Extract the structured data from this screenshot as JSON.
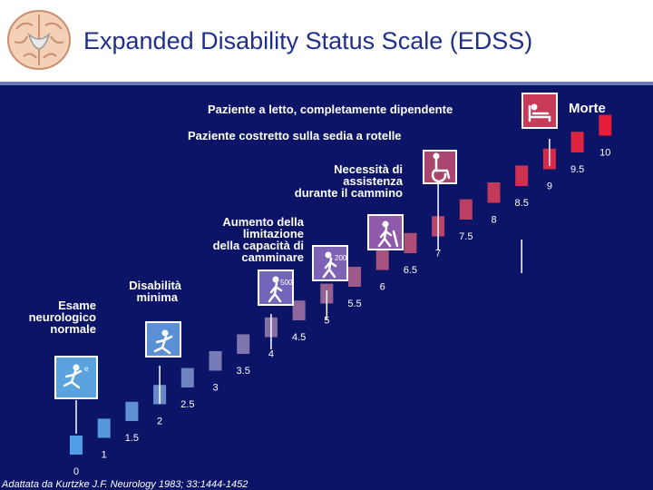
{
  "title": "Expanded Disability Status Scale (EDSS)",
  "citation": "Adattata da Kurtzke J.F. Neurology 1983; 33:1444-1452",
  "milestones": {
    "esame": [
      "Esame",
      "neurologico",
      "normale"
    ],
    "disabilita": [
      "Disabilità",
      "minima"
    ],
    "aumento": [
      "Aumento della",
      "limitazione",
      "della capacità di",
      "camminare"
    ],
    "necessita": [
      "Necessità di",
      "assistenza",
      "durante il cammino"
    ],
    "sedia": "Paziente costretto sulla sedia a rotelle",
    "letto": "Paziente a letto, completamente dipendente",
    "morte": "Morte"
  },
  "icon_labels": {
    "walk500": "500",
    "walk200": "200",
    "runner": "e"
  },
  "chart_data": {
    "type": "bar",
    "title": "Expanded Disability Status Scale (EDSS)",
    "categories": [
      "0",
      "1",
      "1.5",
      "2",
      "2.5",
      "3",
      "3.5",
      "4",
      "4.5",
      "5",
      "5.5",
      "6",
      "6.5",
      "7",
      "7.5",
      "8",
      "8.5",
      "9",
      "9.5",
      "10"
    ],
    "values": [
      0,
      1,
      1.5,
      2,
      2.5,
      3,
      3.5,
      4,
      4.5,
      5,
      5.5,
      6,
      6.5,
      7,
      7.5,
      8,
      8.5,
      9,
      9.5,
      10
    ],
    "ylim": [
      0,
      10
    ],
    "colors": {
      "start": "#4f9ee6",
      "end": "#e51d35"
    }
  },
  "colors": {
    "background": "#0b1466",
    "title": "#1f2f8a",
    "label": "#ffffff"
  }
}
